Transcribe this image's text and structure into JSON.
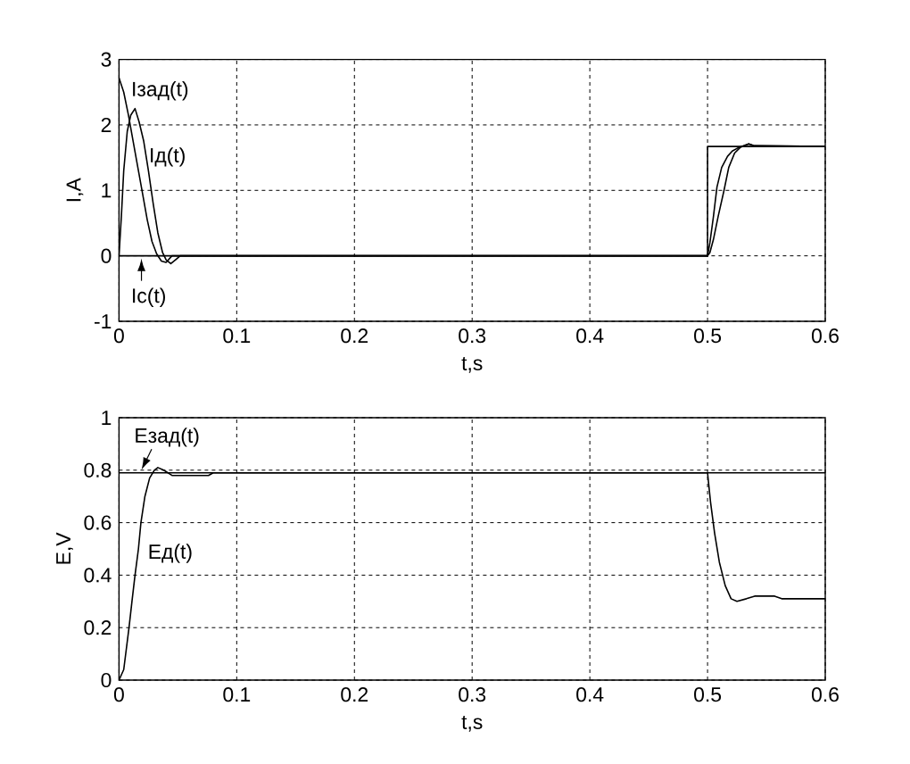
{
  "chart_data": [
    {
      "type": "line",
      "xlabel": "t,s",
      "ylabel": "I,A",
      "xlim": [
        0,
        0.6
      ],
      "xticks": [
        0,
        0.1,
        0.2,
        0.3,
        0.4,
        0.5,
        0.6
      ],
      "ylim": [
        -1,
        3
      ],
      "yticks": [
        -1,
        0,
        1,
        2,
        3
      ],
      "grid": true,
      "marker": "none",
      "line_style": "solid",
      "series": [
        {
          "name": "Iзад(t)",
          "color": "#000000",
          "x": [
            0,
            0.004,
            0.008,
            0.012,
            0.016,
            0.02,
            0.024,
            0.028,
            0.032,
            0.036,
            0.04,
            0.045,
            0.5,
            0.502,
            0.505,
            0.508,
            0.512,
            0.517,
            0.521,
            0.527,
            0.535,
            0.54,
            0.6
          ],
          "values": [
            2.72,
            2.5,
            2.15,
            1.75,
            1.35,
            0.95,
            0.55,
            0.22,
            0.03,
            -0.08,
            -0.1,
            0,
            0,
            0.2,
            0.6,
            1.05,
            1.35,
            1.52,
            1.6,
            1.66,
            1.71,
            1.68,
            1.67
          ]
        },
        {
          "name": "Iд(t)",
          "color": "#000000",
          "x": [
            0,
            0.002,
            0.004,
            0.007,
            0.01,
            0.0136,
            0.017,
            0.021,
            0.025,
            0.029,
            0.033,
            0.037,
            0.04,
            0.044,
            0.048,
            0.052,
            0.5,
            0.502,
            0.505,
            0.509,
            0.514,
            0.518,
            0.523,
            0.528,
            0.535,
            0.54,
            0.6
          ],
          "values": [
            0,
            0.6,
            1.3,
            1.9,
            2.15,
            2.25,
            2.05,
            1.75,
            1.3,
            0.8,
            0.35,
            0.05,
            -0.06,
            -0.12,
            -0.06,
            0,
            0,
            0.05,
            0.25,
            0.6,
            1.0,
            1.35,
            1.57,
            1.66,
            1.71,
            1.68,
            1.67
          ]
        },
        {
          "name": "Ic(t)",
          "color": "#000000",
          "x": [
            0,
            0.018,
            0.5,
            0.5,
            0.6
          ],
          "values": [
            0,
            0,
            0,
            1.67,
            1.67
          ]
        }
      ]
    },
    {
      "type": "line",
      "xlabel": "t,s",
      "ylabel": "E,V",
      "xlim": [
        0,
        0.6
      ],
      "xticks": [
        0,
        0.1,
        0.2,
        0.3,
        0.4,
        0.5,
        0.6
      ],
      "ylim": [
        0,
        1
      ],
      "yticks": [
        0,
        0.2,
        0.4,
        0.6,
        0.8,
        1
      ],
      "grid": true,
      "marker": "none",
      "line_style": "solid",
      "series": [
        {
          "name": "Eзад(t)",
          "color": "#000000",
          "x": [
            0,
            0.015,
            0.5,
            0.6
          ],
          "values": [
            0.79,
            0.79,
            0.79,
            0.79
          ]
        },
        {
          "name": "Eд(t)",
          "color": "#000000",
          "x": [
            0,
            0.004,
            0.0085,
            0.011,
            0.0136,
            0.0165,
            0.0186,
            0.022,
            0.026,
            0.03,
            0.033,
            0.038,
            0.045,
            0.05,
            0.076,
            0.08,
            0.5,
            0.5025,
            0.506,
            0.51,
            0.515,
            0.52,
            0.525,
            0.533,
            0.54,
            0.557,
            0.563,
            0.6
          ],
          "values": [
            0,
            0.04,
            0.2,
            0.3,
            0.4,
            0.5,
            0.6,
            0.7,
            0.77,
            0.8,
            0.81,
            0.8,
            0.78,
            0.78,
            0.78,
            0.79,
            0.79,
            0.68,
            0.56,
            0.45,
            0.36,
            0.31,
            0.3,
            0.31,
            0.32,
            0.32,
            0.31,
            0.31
          ]
        }
      ]
    }
  ]
}
